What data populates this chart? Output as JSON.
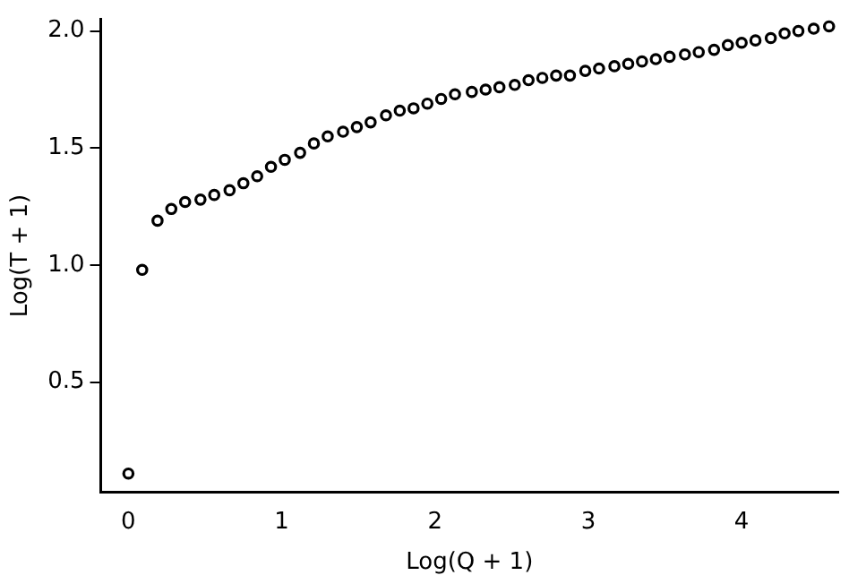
{
  "chart_data": {
    "type": "scatter",
    "xlabel": "Log(Q + 1)",
    "ylabel": "Log(T + 1)",
    "xlim": [
      -0.18,
      4.63
    ],
    "ylim": [
      0.03,
      2.05
    ],
    "xticks": [
      0,
      1,
      2,
      3,
      4
    ],
    "yticks": [
      0.5,
      {
        "value": 1,
        "label": "1.0"
      },
      1.5,
      {
        "value": 2,
        "label": "2.0"
      }
    ],
    "grid": false,
    "legend": false,
    "marker": "circle",
    "series": [
      {
        "color": "#000000",
        "x": [
          0,
          0.09,
          0.19,
          0.28,
          0.37,
          0.47,
          0.56,
          0.66,
          0.75,
          0.84,
          0.93,
          1.02,
          1.12,
          1.21,
          1.3,
          1.4,
          1.49,
          1.58,
          1.68,
          1.77,
          1.86,
          1.95,
          2.04,
          2.13,
          2.24,
          2.33,
          2.42,
          2.52,
          2.61,
          2.7,
          2.79,
          2.88,
          2.98,
          3.07,
          3.17,
          3.26,
          3.35,
          3.44,
          3.53,
          3.63,
          3.72,
          3.82,
          3.91,
          4.0,
          4.09,
          4.19,
          4.28,
          4.37,
          4.47,
          4.57
        ],
        "values": [
          0.11,
          0.98,
          1.19,
          1.24,
          1.27,
          1.28,
          1.3,
          1.32,
          1.35,
          1.38,
          1.42,
          1.45,
          1.48,
          1.52,
          1.55,
          1.57,
          1.59,
          1.61,
          1.64,
          1.66,
          1.67,
          1.69,
          1.71,
          1.73,
          1.74,
          1.75,
          1.76,
          1.77,
          1.79,
          1.8,
          1.81,
          1.81,
          1.83,
          1.84,
          1.85,
          1.86,
          1.87,
          1.88,
          1.89,
          1.9,
          1.91,
          1.92,
          1.94,
          1.95,
          1.96,
          1.97,
          1.99,
          2.0,
          2.01,
          2.02
        ]
      }
    ]
  }
}
